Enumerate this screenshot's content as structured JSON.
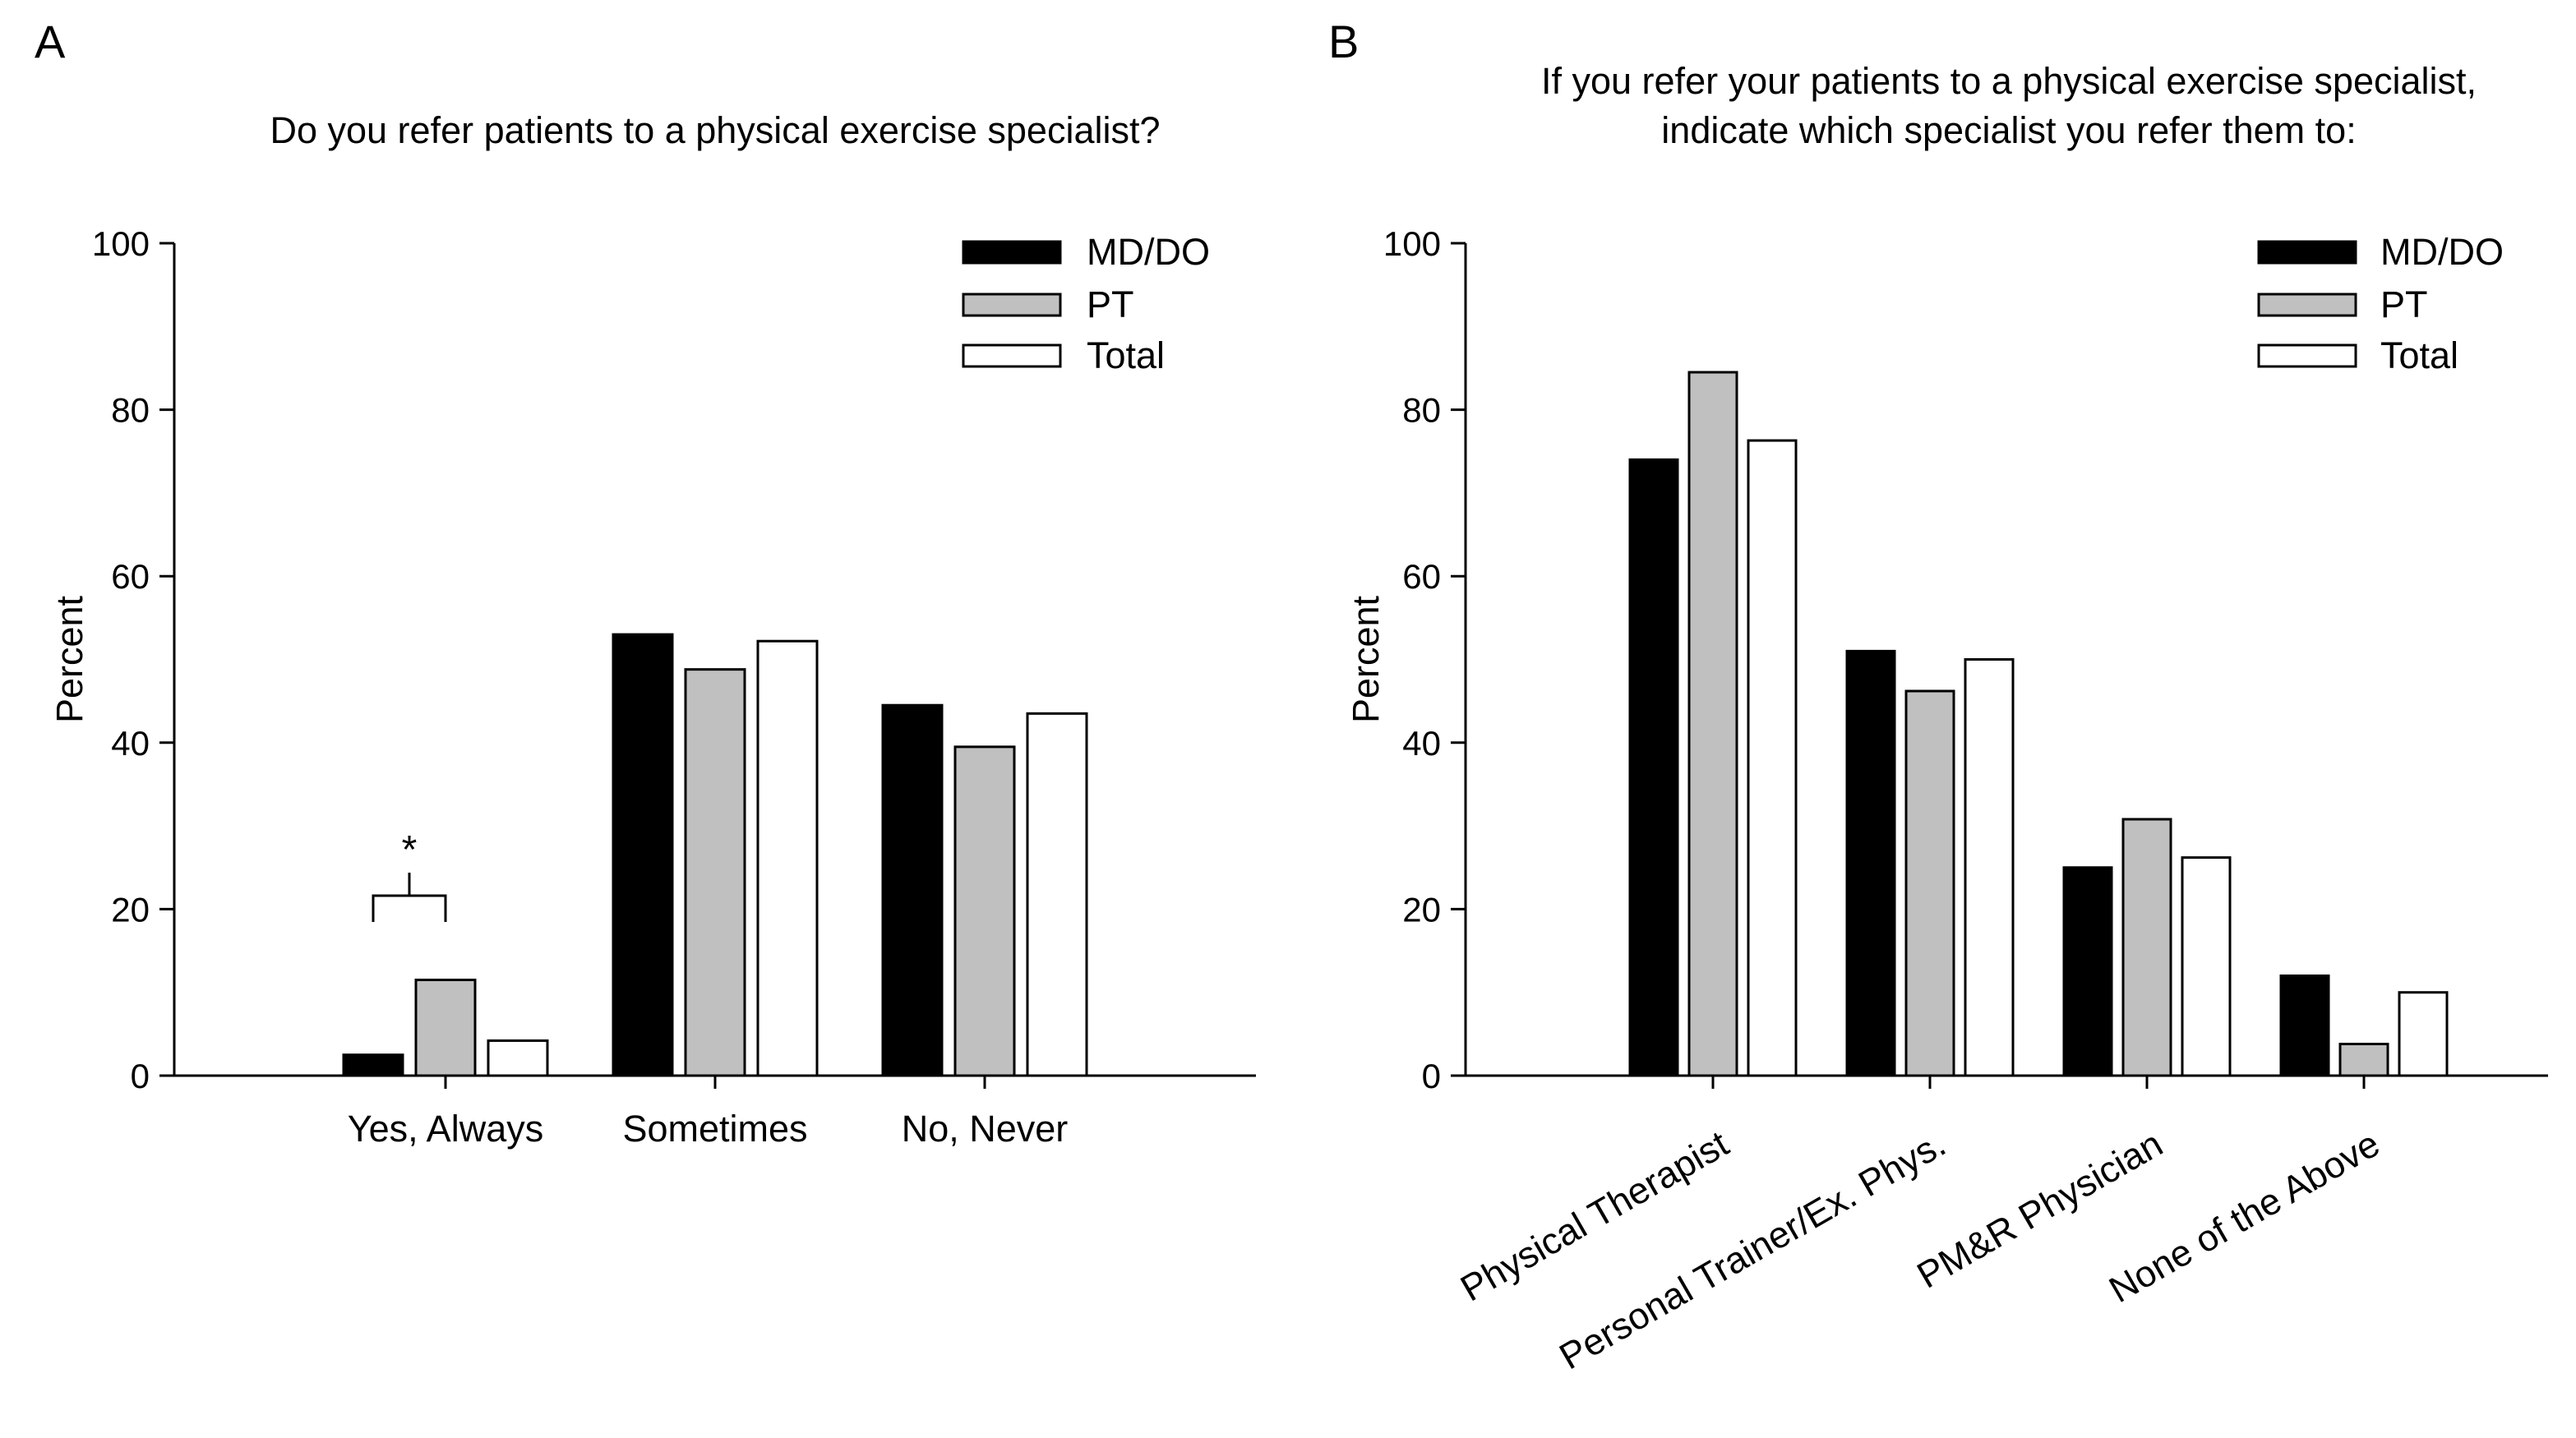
{
  "chart_data": [
    {
      "panel_label": "A",
      "type": "bar",
      "title": "Do you refer patients to a physical exercise specialist?",
      "title_lines": [
        "Do you refer patients to a physical exercise specialist?"
      ],
      "xlabel": "",
      "ylabel": "Percent",
      "ylim": [
        0,
        100
      ],
      "yticks": [
        "0",
        "20",
        "40",
        "60",
        "80",
        "100"
      ],
      "categories": [
        "Yes, Always",
        "Sometimes",
        "No, Never"
      ],
      "series": [
        {
          "name": "MD/DO",
          "color": "#000000",
          "values": [
            2.5,
            53,
            44.5
          ]
        },
        {
          "name": "PT",
          "color": "#c0c0c0",
          "values": [
            11.5,
            48.8,
            39.5
          ]
        },
        {
          "name": "Total",
          "color": "#ffffff",
          "values": [
            4.2,
            52.2,
            43.5
          ]
        }
      ],
      "legend_position": "top-right",
      "grid": false,
      "annotations": [
        {
          "text": "*",
          "category": "Yes, Always",
          "compares": [
            "MD/DO",
            "PT"
          ]
        }
      ]
    },
    {
      "panel_label": "B",
      "type": "bar",
      "title": "If you refer your patients to a physical exercise specialist, indicate which specialist you refer them to:",
      "title_lines": [
        "If you refer your patients to a physical exercise specialist,",
        "indicate which specialist you refer them to:"
      ],
      "xlabel": "",
      "ylabel": "Percent",
      "ylim": [
        0,
        100
      ],
      "yticks": [
        "0",
        "20",
        "40",
        "60",
        "80",
        "100"
      ],
      "categories": [
        "Physical Therapist",
        "Personal Trainer/Ex. Phys.",
        "PM&R Physician",
        "None of the Above"
      ],
      "series": [
        {
          "name": "MD/DO",
          "color": "#000000",
          "values": [
            74,
            51,
            25,
            12
          ]
        },
        {
          "name": "PT",
          "color": "#c0c0c0",
          "values": [
            84.5,
            46.2,
            30.8,
            3.8
          ]
        },
        {
          "name": "Total",
          "color": "#ffffff",
          "values": [
            76.3,
            50,
            26.2,
            10
          ]
        }
      ],
      "legend_position": "top-right",
      "grid": false,
      "annotations": []
    }
  ]
}
